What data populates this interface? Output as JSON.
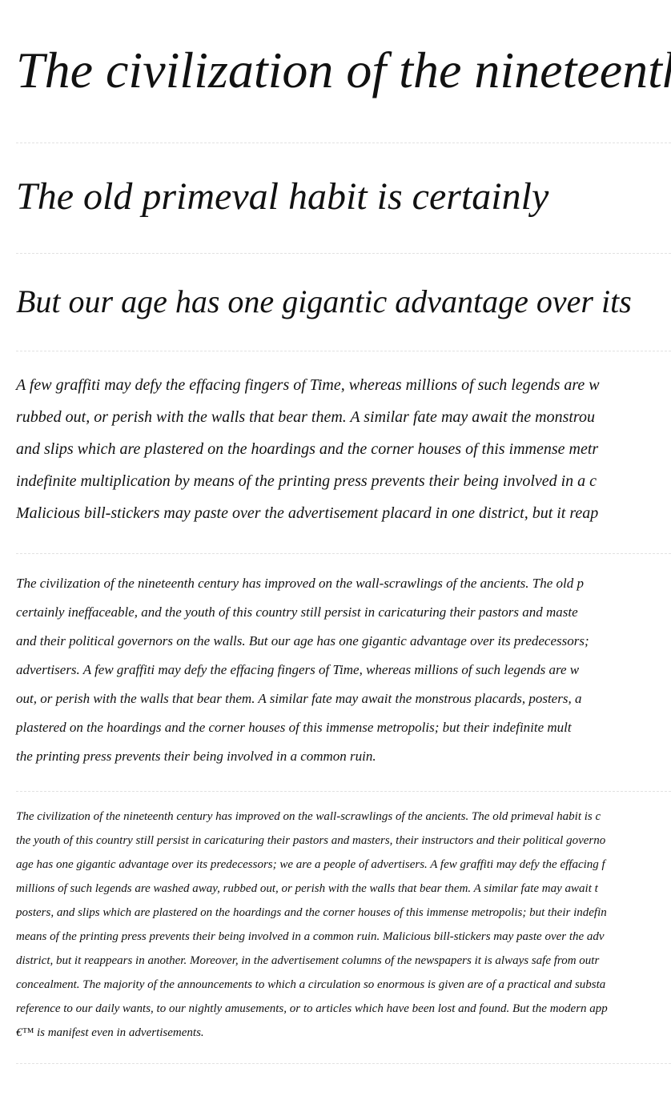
{
  "headings": [
    "The civilization of the nineteenth",
    "The old primeval habit is certainly",
    "But our age has one gigantic advantage over its"
  ],
  "paragraphs": [
    {
      "lines": [
        "A few graffiti may defy the effacing fingers of Time, whereas millions of such legends are w",
        "rubbed out, or perish with the walls that bear them. A similar fate may await the monstrou",
        "and slips which are plastered on the hoardings and the corner houses of this immense metr",
        "indefinite multiplication by means of the printing press prevents their being involved in a c",
        "Malicious bill-stickers may paste over the advertisement placard in one district, but it reap"
      ]
    },
    {
      "lines": [
        "The civilization of the nineteenth century has improved on the wall-scrawlings of the ancients. The old p",
        "certainly ineffaceable, and the youth of this country still persist in caricaturing their pastors and maste",
        "and their political governors on the walls. But our age has one gigantic advantage over its predecessors;",
        "advertisers. A few graffiti may defy the effacing fingers of Time, whereas millions of such legends are w",
        "out, or perish with the walls that bear them. A similar fate may await the monstrous placards, posters, a",
        "plastered on the hoardings and the corner houses of this immense metropolis; but their indefinite mult",
        "the printing press prevents their being involved in a common ruin."
      ]
    },
    {
      "lines": [
        "The civilization of the nineteenth century has improved on the wall-scrawlings of the ancients. The old primeval habit is c",
        "the youth of this country still persist in caricaturing their pastors and masters, their instructors and their political governo",
        "age has one gigantic advantage over its predecessors; we are a people of advertisers. A few graffiti may defy the effacing f",
        "millions of such legends are washed away, rubbed out, or perish with the walls that bear them. A similar fate may await t",
        "posters, and slips which are plastered on the hoardings and the corner houses of this immense metropolis; but their indefin",
        "means of the printing press prevents their being involved in a common ruin. Malicious bill-stickers may paste over the adv",
        "district, but it reappears in another. Moreover, in the advertisement columns of the newspapers it is always safe from outr",
        "concealment. The majority of the announcements to which a circulation so enormous is given are of a practical and substa",
        "reference to our daily wants, to our nightly amusements, or to articles which have been lost and found. But the modern app",
        "€™ is manifest even in advertisements."
      ]
    }
  ]
}
